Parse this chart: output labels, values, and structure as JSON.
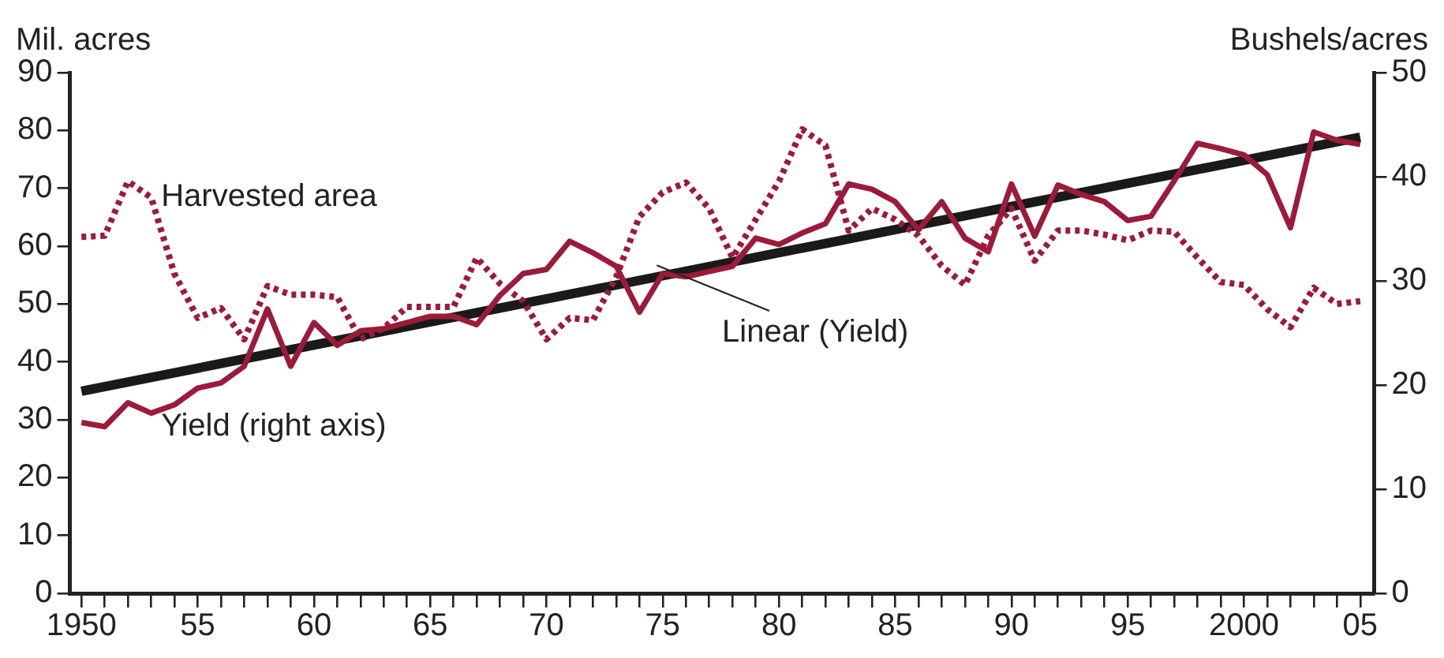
{
  "chart_data": {
    "type": "line",
    "ylabel": "Mil. acres",
    "y2label": "Bushels/acres",
    "x": [
      1950,
      1951,
      1952,
      1953,
      1954,
      1955,
      1956,
      1957,
      1958,
      1959,
      1960,
      1961,
      1962,
      1963,
      1964,
      1965,
      1966,
      1967,
      1968,
      1969,
      1970,
      1971,
      1972,
      1973,
      1974,
      1975,
      1976,
      1977,
      1978,
      1979,
      1980,
      1981,
      1982,
      1983,
      1984,
      1985,
      1986,
      1987,
      1988,
      1989,
      1990,
      1991,
      1992,
      1993,
      1994,
      1995,
      1996,
      1997,
      1998,
      1999,
      2000,
      2001,
      2002,
      2003,
      2004,
      2005
    ],
    "series": [
      {
        "color": "#9b1b3a",
        "line_style": "dotted",
        "values": [
          61.6,
          61.8,
          71.2,
          68.4,
          55.2,
          47.6,
          49.3,
          43.9,
          53.1,
          51.6,
          51.6,
          51.2,
          43.9,
          45.8,
          49.5,
          49.5,
          49.5,
          58.0,
          53.5,
          50.5,
          43.9,
          47.6,
          47.2,
          54.7,
          65.1,
          69.3,
          71.0,
          66.5,
          58.0,
          64.6,
          71.2,
          80.2,
          77.4,
          62.7,
          66.5,
          64.6,
          61.8,
          56.6,
          53.3,
          61.8,
          66.5,
          57.5,
          62.7,
          62.7,
          62.0,
          61.0,
          62.7,
          62.5,
          58.0,
          53.8,
          53.3,
          49.1,
          46.0,
          52.8,
          50.0,
          50.5
        ]
      },
      {
        "color": "#9b1b3a",
        "line_style": "solid",
        "axis": "y2",
        "values": [
          16.4,
          16.0,
          18.3,
          17.3,
          18.1,
          19.7,
          20.2,
          21.8,
          27.3,
          21.8,
          26.0,
          23.8,
          25.2,
          25.4,
          26.0,
          26.6,
          26.6,
          25.8,
          28.6,
          30.7,
          31.1,
          33.8,
          32.7,
          31.4,
          27.0,
          30.7,
          30.4,
          30.9,
          31.4,
          34.1,
          33.5,
          34.6,
          35.5,
          39.3,
          38.8,
          37.6,
          34.9,
          37.6,
          34.1,
          32.8,
          39.3,
          34.3,
          39.2,
          38.3,
          37.6,
          35.8,
          36.2,
          39.6,
          43.2,
          42.7,
          42.1,
          40.2,
          35.1,
          44.3,
          43.5,
          43.1
        ]
      },
      {
        "type": "line",
        "color": "#1a1a1a",
        "line_style": "solid",
        "axis": "y2",
        "x": [
          1950,
          2005
        ],
        "values": [
          19.4,
          43.8
        ]
      }
    ],
    "xlim": [
      1949.5,
      2005.6
    ],
    "xticks": [
      1950,
      {
        "value": 1951,
        "label": null
      },
      {
        "value": 1952,
        "label": null
      },
      {
        "value": 1953,
        "label": null
      },
      {
        "value": 1954,
        "label": null
      },
      {
        "value": 1955,
        "label": "55"
      },
      {
        "value": 1956,
        "label": null
      },
      {
        "value": 1957,
        "label": null
      },
      {
        "value": 1958,
        "label": null
      },
      {
        "value": 1959,
        "label": null
      },
      {
        "value": 1960,
        "label": "60"
      },
      {
        "value": 1961,
        "label": null
      },
      {
        "value": 1962,
        "label": null
      },
      {
        "value": 1963,
        "label": null
      },
      {
        "value": 1964,
        "label": null
      },
      {
        "value": 1965,
        "label": "65"
      },
      {
        "value": 1966,
        "label": null
      },
      {
        "value": 1967,
        "label": null
      },
      {
        "value": 1968,
        "label": null
      },
      {
        "value": 1969,
        "label": null
      },
      {
        "value": 1970,
        "label": "70"
      },
      {
        "value": 1971,
        "label": null
      },
      {
        "value": 1972,
        "label": null
      },
      {
        "value": 1973,
        "label": null
      },
      {
        "value": 1974,
        "label": null
      },
      {
        "value": 1975,
        "label": "75"
      },
      {
        "value": 1976,
        "label": null
      },
      {
        "value": 1977,
        "label": null
      },
      {
        "value": 1978,
        "label": null
      },
      {
        "value": 1979,
        "label": null
      },
      {
        "value": 1980,
        "label": "80"
      },
      {
        "value": 1981,
        "label": null
      },
      {
        "value": 1982,
        "label": null
      },
      {
        "value": 1983,
        "label": null
      },
      {
        "value": 1984,
        "label": null
      },
      {
        "value": 1985,
        "label": "85"
      },
      {
        "value": 1986,
        "label": null
      },
      {
        "value": 1987,
        "label": null
      },
      {
        "value": 1988,
        "label": null
      },
      {
        "value": 1989,
        "label": null
      },
      {
        "value": 1990,
        "label": "90"
      },
      {
        "value": 1991,
        "label": null
      },
      {
        "value": 1992,
        "label": null
      },
      {
        "value": 1993,
        "label": null
      },
      {
        "value": 1994,
        "label": null
      },
      {
        "value": 1995,
        "label": "95"
      },
      {
        "value": 1996,
        "label": null
      },
      {
        "value": 1997,
        "label": null
      },
      {
        "value": 1998,
        "label": null
      },
      {
        "value": 1999,
        "label": null
      },
      {
        "value": 2000,
        "label": "2000"
      },
      {
        "value": 2001,
        "label": null
      },
      {
        "value": 2002,
        "label": null
      },
      {
        "value": 2003,
        "label": null
      },
      {
        "value": 2004,
        "label": null
      },
      {
        "value": 2005,
        "label": "05"
      }
    ],
    "ylim": [
      0,
      90
    ],
    "yticks": [
      0,
      10,
      20,
      30,
      40,
      50,
      60,
      70,
      80,
      90
    ],
    "y2lim": [
      0,
      50
    ],
    "y2ticks": [
      0,
      10,
      20,
      30,
      40,
      50
    ],
    "annotations": [
      "Harvested area",
      "Yield (right axis)",
      "Linear (Yield)"
    ],
    "grid": false,
    "legend": false,
    "marker": "none"
  }
}
